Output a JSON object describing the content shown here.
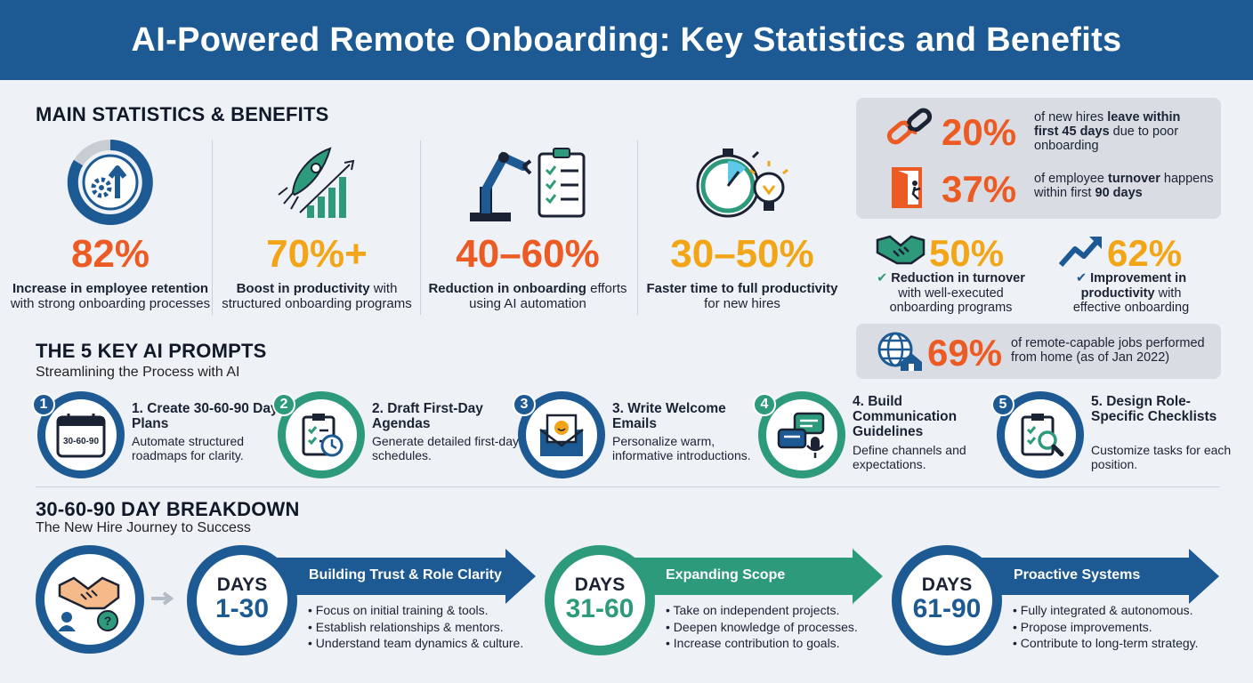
{
  "title": "AI-Powered Remote Onboarding: Key Statistics and Benefits",
  "main": {
    "heading": "MAIN STATISTICS & BENEFITS",
    "stats": [
      {
        "value": "82%",
        "desc_bold": "Increase in employee retention",
        "desc": " with strong onboarding processes"
      },
      {
        "value": "70%+",
        "desc_bold": "Boost in productivity",
        "desc": " with structured onboarding programs"
      },
      {
        "value": "40–60%",
        "desc_bold": "Reduction in onboarding",
        "desc": " efforts using AI automation"
      },
      {
        "value": "30–50%",
        "desc_bold": "Faster time to full productivity",
        "desc": " for new hires"
      }
    ]
  },
  "right": {
    "s1": {
      "value": "20%",
      "pre": "of new hires ",
      "bold": "leave within first 45 days",
      "post": " due to poor onboarding"
    },
    "s2": {
      "value": "37%",
      "pre": "of employee ",
      "bold": "turnover",
      "mid": " happens within first ",
      "bold2": "90 days"
    },
    "s3": {
      "value": "50%",
      "bold": "Reduction in turnover",
      "post": "with well-executed onboarding programs"
    },
    "s4": {
      "value": "62%",
      "bold": "Improvement in productivity",
      "post": " with effective onboarding"
    },
    "s5": {
      "value": "69%",
      "text": "of remote-capable jobs performed from home (as of Jan 2022)"
    }
  },
  "prompts": {
    "heading": "THE 5 KEY AI PROMPTS",
    "subtitle": "Streamlining the Process with AI",
    "items": [
      {
        "num": "1",
        "title": "1. Create 30-60-90 Day Plans",
        "desc": "Automate structured roadmaps for clarity.",
        "icon_text": "30-60-90"
      },
      {
        "num": "2",
        "title": "2. Draft First-Day Agendas",
        "desc": "Generate detailed first-day schedules."
      },
      {
        "num": "3",
        "title": "3. Write Welcome Emails",
        "desc": "Personalize warm, informative introductions."
      },
      {
        "num": "4",
        "title": "4. Build Communication Guidelines",
        "desc": "Define channels and expectations."
      },
      {
        "num": "5",
        "title": "5. Design Role-Specific Checklists",
        "desc": "Customize tasks for each position."
      }
    ]
  },
  "breakdown": {
    "heading": "30-60-90 DAY BREAKDOWN",
    "subtitle": "The New Hire Journey to Success",
    "phases": [
      {
        "days_label": "DAYS",
        "range": "1-30",
        "title": "Building Trust & Role Clarity",
        "bullets": [
          "Focus on initial training & tools.",
          "Establish relationships & mentors.",
          "Understand team dynamics & culture."
        ]
      },
      {
        "days_label": "DAYS",
        "range": "31-60",
        "title": "Expanding Scope",
        "bullets": [
          "Take on independent projects.",
          "Deepen knowledge of processes.",
          "Increase contribution to goals."
        ]
      },
      {
        "days_label": "DAYS",
        "range": "61-90",
        "title": "Proactive Systems",
        "bullets": [
          "Fully integrated & autonomous.",
          "Propose improvements.",
          "Contribute to long-term strategy."
        ]
      }
    ]
  },
  "colors": {
    "navy": "#1d5a93",
    "teal": "#2e9a7c",
    "orange": "#ec5b24",
    "yellow": "#f2a516"
  }
}
